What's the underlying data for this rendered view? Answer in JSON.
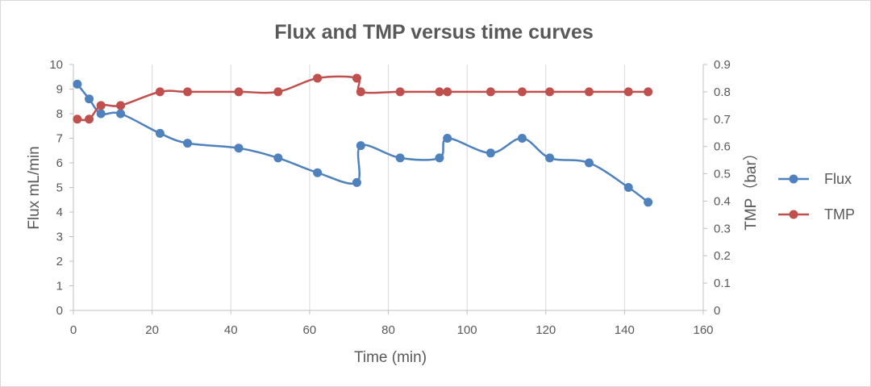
{
  "chart_data": {
    "type": "scatter",
    "title": "Flux and TMP versus time curves",
    "xlabel": "Time (min)",
    "ylabel": "Flux mL/min",
    "y2label": "TMP（bar）",
    "xlim": [
      0,
      160
    ],
    "ylim": [
      0,
      10
    ],
    "y2lim": [
      0,
      0.9
    ],
    "x_ticks": [
      "0",
      "20",
      "40",
      "60",
      "80",
      "100",
      "120",
      "140",
      "160"
    ],
    "y_ticks": [
      "0",
      "1",
      "2",
      "3",
      "4",
      "5",
      "6",
      "7",
      "8",
      "9",
      "10"
    ],
    "y2_ticks": [
      "0",
      "0.1",
      "0.2",
      "0.3",
      "0.4",
      "0.5",
      "0.6",
      "0.7",
      "0.8",
      "0.9"
    ],
    "grid": "vertical",
    "legend_position": "right",
    "series": [
      {
        "name": "Flux",
        "axis": "left",
        "color": "#4f81bd",
        "x": [
          1,
          4,
          7,
          12,
          22,
          29,
          42,
          52,
          62,
          72,
          73,
          83,
          93,
          95,
          106,
          114,
          121,
          131,
          141,
          146
        ],
        "y": [
          9.2,
          8.6,
          8.0,
          8.0,
          7.2,
          6.8,
          6.6,
          6.2,
          5.6,
          5.2,
          6.7,
          6.2,
          6.2,
          7.0,
          6.4,
          7.0,
          6.2,
          6.0,
          5.0,
          4.4
        ]
      },
      {
        "name": "TMP",
        "axis": "right",
        "color": "#c0504d",
        "x": [
          1,
          4,
          7,
          12,
          22,
          29,
          42,
          52,
          62,
          72,
          73,
          83,
          93,
          95,
          106,
          114,
          121,
          131,
          141,
          146
        ],
        "y": [
          0.7,
          0.7,
          0.75,
          0.75,
          0.8,
          0.8,
          0.8,
          0.8,
          0.85,
          0.85,
          0.8,
          0.8,
          0.8,
          0.8,
          0.8,
          0.8,
          0.8,
          0.8,
          0.8,
          0.8
        ]
      }
    ]
  }
}
